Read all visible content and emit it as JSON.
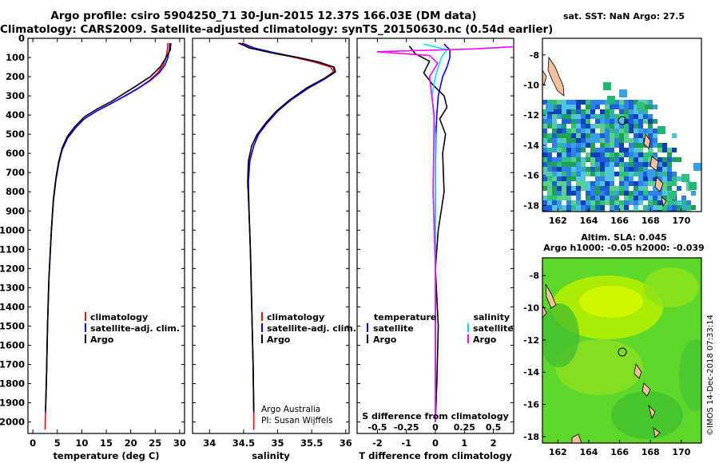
{
  "header": {
    "title_line1": "Argo profile: csiro 5904250_71 30-Jun-2015 12.37S 166.03E (DM data)",
    "title_line2": "Climatology: CARS2009. Satellite-adjusted climatology: synTS_20150630.nc (0.54d earlier)"
  },
  "colors": {
    "climatology": "#ff0000",
    "satellite": "#0000ff",
    "argo": "#000000",
    "sat_salinity": "#00e5ff",
    "argo_salinity": "#ff00ff"
  },
  "chart_data": [
    {
      "type": "line",
      "xlabel": "temperature (deg C)",
      "xlim": [
        -1,
        31
      ],
      "xticks": [
        "0",
        "5",
        "10",
        "15",
        "20",
        "25",
        "30"
      ],
      "ylim": [
        0,
        2060
      ],
      "yticks": [
        "0",
        "100",
        "200",
        "300",
        "400",
        "500",
        "600",
        "700",
        "800",
        "900",
        "1000",
        "1100",
        "1200",
        "1300",
        "1400",
        "1500",
        "1600",
        "1700",
        "1800",
        "1900",
        "2000"
      ],
      "legend": [
        "climatology",
        "satellite-adj. clim.",
        "Argo"
      ],
      "series": [
        {
          "name": "climatology",
          "x": [
            27.6,
            27.5,
            27.2,
            26.6,
            25.5,
            23.8,
            21.5,
            18.8,
            16.0,
            13.0,
            10.5,
            8.6,
            7.1,
            6.0,
            5.3,
            4.7,
            4.2,
            3.8,
            3.3,
            3.0,
            2.8,
            2.6,
            2.5
          ],
          "y": [
            25,
            60,
            100,
            140,
            180,
            220,
            260,
            300,
            340,
            380,
            420,
            470,
            520,
            580,
            650,
            740,
            850,
            1000,
            1250,
            1500,
            1750,
            1950,
            2040
          ]
        },
        {
          "name": "satellite-adj. clim.",
          "x": [
            28.0,
            27.9,
            27.6,
            27.0,
            25.8,
            24.0,
            21.6,
            18.9,
            16.0,
            13.0,
            10.5,
            8.6,
            7.1,
            6.0,
            5.3,
            4.7,
            4.2,
            3.8,
            3.3,
            3.0,
            2.8,
            2.6
          ],
          "y": [
            25,
            60,
            100,
            140,
            180,
            220,
            260,
            300,
            340,
            380,
            420,
            470,
            520,
            580,
            650,
            740,
            850,
            1000,
            1250,
            1500,
            1750,
            1950
          ]
        },
        {
          "name": "Argo",
          "x": [
            28.2,
            28.1,
            27.0,
            26.0,
            24.0,
            21.0,
            18.5,
            16.0,
            13.0,
            10.5,
            8.6,
            7.1,
            6.0,
            5.3,
            4.7,
            4.2,
            3.8,
            3.3,
            3.0,
            2.8,
            2.6
          ],
          "y": [
            25,
            60,
            110,
            150,
            200,
            250,
            290,
            330,
            370,
            410,
            460,
            510,
            570,
            640,
            730,
            840,
            990,
            1240,
            1490,
            1740,
            1940
          ]
        }
      ]
    },
    {
      "type": "line",
      "xlabel": "salinity",
      "xlim": [
        33.75,
        36.05
      ],
      "xticks": [
        "34",
        "34.5",
        "35",
        "35.5",
        "36"
      ],
      "ylim": [
        0,
        2060
      ],
      "legend": [
        "climatology",
        "satellite-adj. clim.",
        "Argo"
      ],
      "annotation": [
        "Argo Australia",
        "PI: Susan Wijffels"
      ],
      "series": [
        {
          "name": "climatology",
          "x": [
            34.42,
            34.6,
            34.9,
            35.25,
            35.55,
            35.78,
            35.82,
            35.68,
            35.45,
            35.2,
            35.0,
            34.85,
            34.72,
            34.65,
            34.59,
            34.57,
            34.58,
            34.6,
            34.62,
            34.64,
            34.65,
            34.65
          ],
          "y": [
            25,
            50,
            75,
            100,
            125,
            150,
            175,
            210,
            260,
            320,
            380,
            440,
            500,
            560,
            640,
            750,
            900,
            1100,
            1400,
            1700,
            1950,
            2040
          ]
        },
        {
          "name": "satellite-adj. clim.",
          "x": [
            34.48,
            34.65,
            34.95,
            35.3,
            35.6,
            35.83,
            35.85,
            35.7,
            35.45,
            35.2,
            35.0,
            34.85,
            34.72,
            34.65,
            34.59,
            34.57,
            34.58,
            34.6,
            34.62,
            34.64,
            34.65
          ],
          "y": [
            25,
            50,
            75,
            100,
            125,
            150,
            175,
            210,
            260,
            320,
            380,
            440,
            500,
            560,
            640,
            750,
            900,
            1100,
            1400,
            1700,
            1950
          ]
        },
        {
          "name": "Argo",
          "x": [
            34.44,
            34.58,
            34.9,
            35.3,
            35.62,
            35.82,
            35.84,
            35.68,
            35.42,
            35.18,
            34.98,
            34.83,
            34.7,
            34.62,
            34.57,
            34.56,
            34.58,
            34.6,
            34.62,
            34.64,
            34.65
          ],
          "y": [
            25,
            50,
            75,
            100,
            125,
            150,
            175,
            210,
            260,
            320,
            380,
            440,
            500,
            560,
            640,
            750,
            900,
            1100,
            1400,
            1700,
            1950
          ]
        }
      ]
    },
    {
      "type": "line",
      "xlabel": "T difference from climatology",
      "xlim": [
        -2.7,
        2.7
      ],
      "xticks": [
        "-2",
        "-1",
        "0",
        "1",
        "2"
      ],
      "x2label": "S difference from climatology",
      "x2ticks": [
        "-0.5",
        "-0.25",
        "0",
        "0.25",
        "0.5"
      ],
      "ylim": [
        0,
        2060
      ],
      "legend_temperature": {
        "title": "temperature",
        "items": [
          "satellite",
          "Argo"
        ]
      },
      "legend_salinity": {
        "title": "salinity",
        "items": [
          "satellite",
          "Argo"
        ]
      },
      "series": [
        {
          "name": "T satellite",
          "x": [
            0.3,
            0.5,
            0.5,
            0.4,
            0.25,
            0.1,
            0.05,
            0.02,
            0.0,
            0.0,
            0.0,
            0.0
          ],
          "y": [
            30,
            60,
            100,
            150,
            200,
            300,
            400,
            500,
            700,
            1000,
            1500,
            2000
          ]
        },
        {
          "name": "T Argo",
          "x": [
            -0.9,
            -0.7,
            -0.2,
            -0.4,
            -0.1,
            0.3,
            0.4,
            0.15,
            0.35,
            0.25,
            0.3,
            0.1,
            0.0,
            0.1,
            0.05,
            0.0
          ],
          "y": [
            40,
            80,
            120,
            180,
            240,
            300,
            360,
            420,
            500,
            600,
            800,
            1000,
            1200,
            1500,
            1800,
            2000
          ]
        },
        {
          "name": "S satellite",
          "x": [
            -0.1,
            0.1,
            0.05,
            0.0,
            -0.03,
            0.0,
            0.0,
            0.0,
            0.0
          ],
          "y": [
            30,
            60,
            100,
            200,
            300,
            500,
            800,
            1200,
            2000
          ]
        },
        {
          "name": "S Argo",
          "x": [
            0.8,
            0.35,
            -0.5,
            -0.05,
            0.02,
            -0.05,
            -0.01,
            -0.02,
            0.0,
            0.0
          ],
          "y": [
            40,
            55,
            70,
            90,
            130,
            200,
            400,
            800,
            1200,
            2000
          ]
        }
      ]
    }
  ],
  "maps": {
    "sst": {
      "title": "sat. SST: NaN Argo: 27.5",
      "xticks": [
        "162",
        "164",
        "166",
        "168",
        "170"
      ],
      "yticks": [
        "-8",
        "-10",
        "-12",
        "-14",
        "-16",
        "-18"
      ]
    },
    "sla": {
      "title_line1": "Altim. SLA: 0.045",
      "title_line2": "Argo h1000: -0.05 h2000: -0.039",
      "xticks": [
        "162",
        "164",
        "166",
        "168",
        "170"
      ],
      "yticks": [
        "-8",
        "-10",
        "-12",
        "-14",
        "-16",
        "-18"
      ]
    }
  },
  "credit": "©IMOS 14-Dec-2018 07:33:14"
}
